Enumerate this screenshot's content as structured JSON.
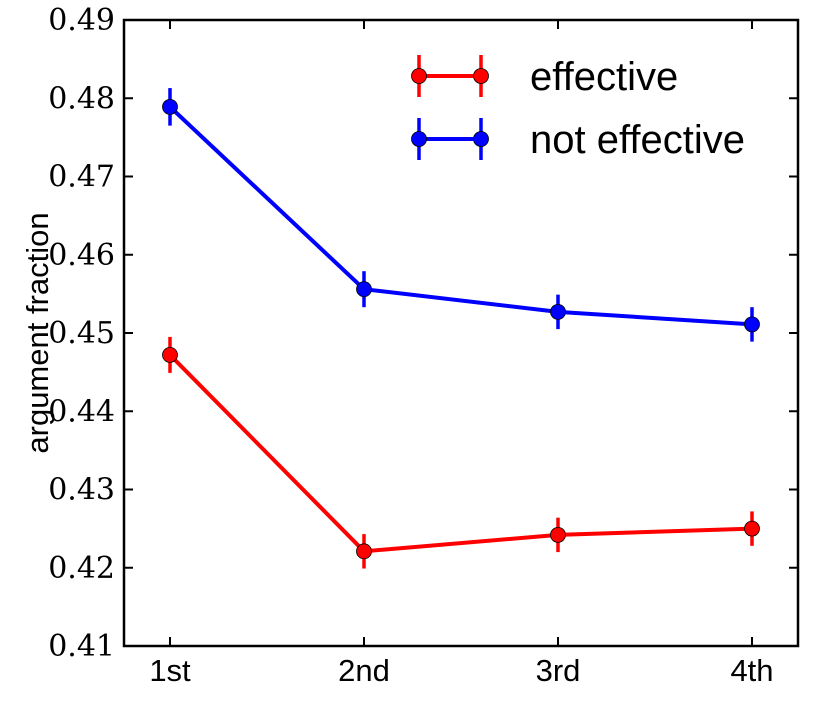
{
  "chart_data": {
    "type": "line",
    "title": "",
    "xlabel": "",
    "ylabel": "argument fraction",
    "categories": [
      "1st",
      "2nd",
      "3rd",
      "4th"
    ],
    "ylim": [
      0.41,
      0.49
    ],
    "yticks": [
      "0.41",
      "0.42",
      "0.43",
      "0.44",
      "0.45",
      "0.46",
      "0.47",
      "0.48",
      "0.49"
    ],
    "grid": false,
    "legend_position": "top-right",
    "series": [
      {
        "name": "effective",
        "color": "#ff0000",
        "values": [
          0.4472,
          0.4221,
          0.4242,
          0.425
        ],
        "errors": [
          0.0023,
          0.0022,
          0.0022,
          0.0022
        ]
      },
      {
        "name": "not effective",
        "color": "#0000ff",
        "values": [
          0.4789,
          0.4556,
          0.4527,
          0.4511
        ],
        "errors": [
          0.0024,
          0.0023,
          0.0022,
          0.0022
        ]
      }
    ]
  }
}
